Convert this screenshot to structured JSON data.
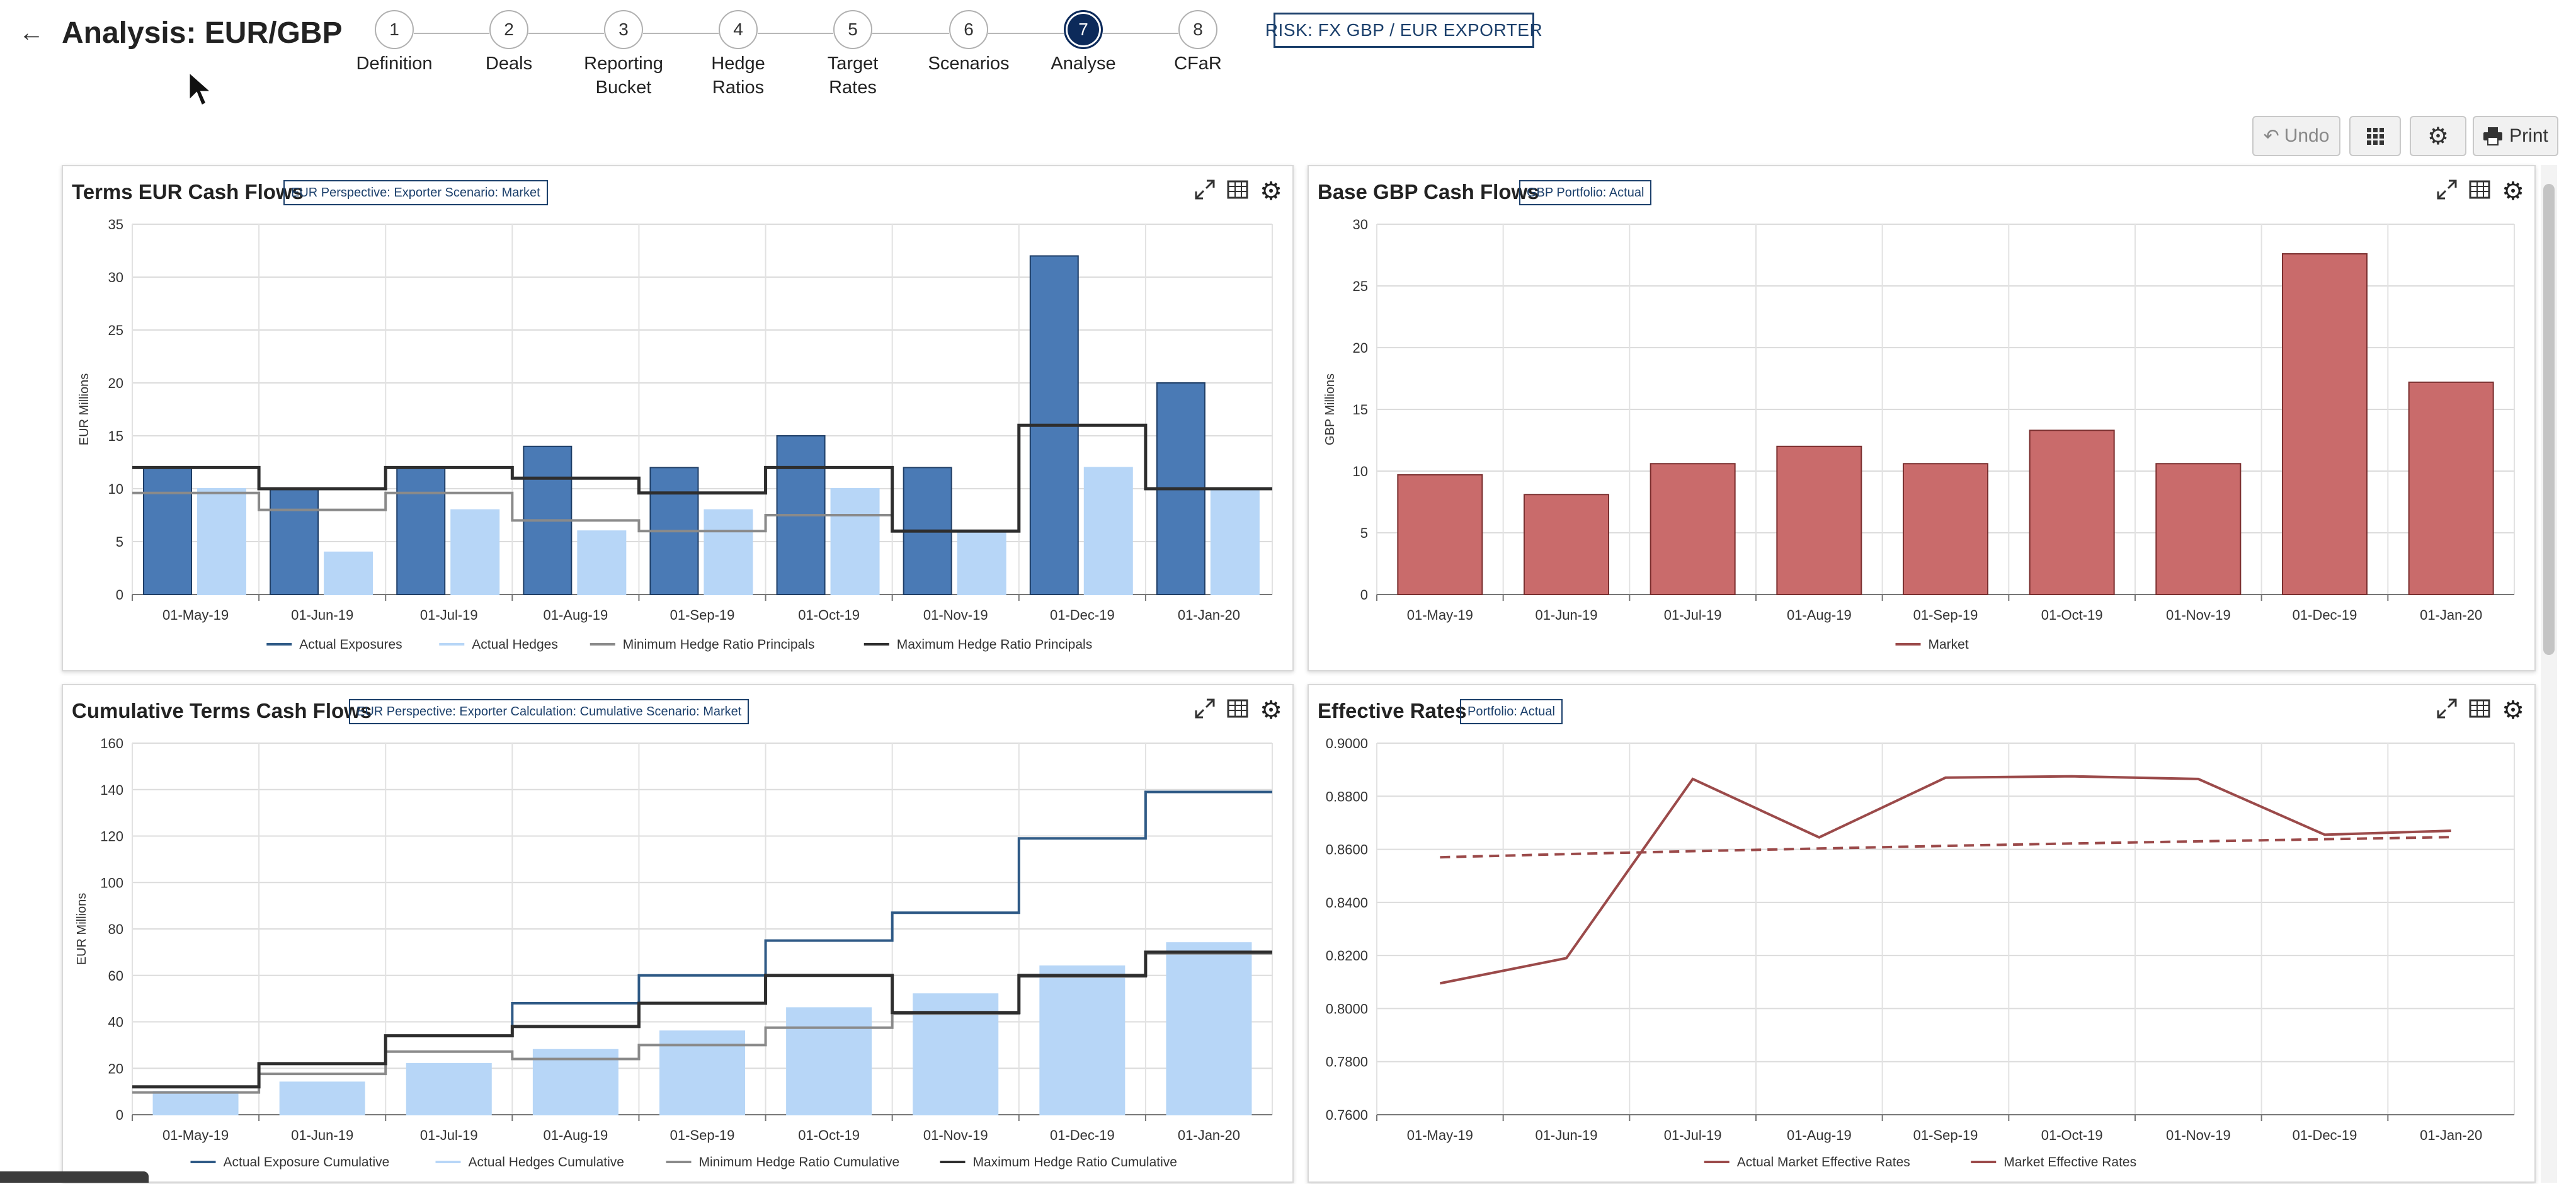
{
  "header": {
    "title": "Analysis: EUR/GBP",
    "risk": "RISK: FX GBP / EUR EXPORTER"
  },
  "steps": [
    {
      "num": "1",
      "label": "Definition"
    },
    {
      "num": "2",
      "label": "Deals"
    },
    {
      "num": "3",
      "label": "Reporting\nBucket"
    },
    {
      "num": "4",
      "label": "Hedge\nRatios"
    },
    {
      "num": "5",
      "label": "Target\nRates"
    },
    {
      "num": "6",
      "label": "Scenarios"
    },
    {
      "num": "7",
      "label": "Analyse"
    },
    {
      "num": "8",
      "label": "CFaR"
    }
  ],
  "active_step": 7,
  "toolbar": {
    "undo": "Undo",
    "print": "Print"
  },
  "colors": {
    "dark_blue": "#4a7ab5",
    "light_blue": "#b7d6f7",
    "red": "#c96b6b",
    "min_line": "#8a8a8a",
    "max_line": "#2e2e2e",
    "exposure_line": "#2f5a86",
    "rate_line": "#9b4a4a"
  },
  "panels": {
    "terms": {
      "title": "Terms EUR Cash Flows",
      "tag": "EUR Perspective: Exporter Scenario: Market"
    },
    "base": {
      "title": "Base GBP Cash Flows",
      "tag": "GBP Portfolio: Actual"
    },
    "cumulative": {
      "title": "Cumulative Terms Cash Flows",
      "tag": "EUR Perspective: Exporter Calculation: Cumulative Scenario: Market"
    },
    "rates": {
      "title": "Effective Rates",
      "tag": "Portfolio: Actual"
    }
  },
  "chart_data": [
    {
      "id": "terms",
      "type": "bar",
      "categories": [
        "01-May-19",
        "01-Jun-19",
        "01-Jul-19",
        "01-Aug-19",
        "01-Sep-19",
        "01-Oct-19",
        "01-Nov-19",
        "01-Dec-19",
        "01-Jan-20"
      ],
      "ylabel": "EUR Millions",
      "ylim": [
        0,
        35
      ],
      "yticks": [
        "0",
        "5",
        "10",
        "15",
        "20",
        "25",
        "30",
        "35"
      ],
      "bar_series": [
        {
          "name": "Actual Exposures",
          "values": [
            12,
            10,
            12,
            14,
            12,
            15,
            12,
            32,
            20
          ]
        },
        {
          "name": "Actual Hedges",
          "values": [
            10,
            4,
            8,
            6,
            8,
            10,
            6,
            12,
            10
          ]
        }
      ],
      "step_series": [
        {
          "name": "Minimum Hedge Ratio Principals",
          "values": [
            9.6,
            8,
            9.6,
            7,
            6,
            7.5,
            6,
            16,
            10
          ]
        },
        {
          "name": "Maximum Hedge Ratio Principals",
          "values": [
            12,
            10,
            12,
            11,
            9.6,
            12,
            6,
            16,
            10
          ]
        }
      ],
      "grid": true,
      "legend": "bottom"
    },
    {
      "id": "base",
      "type": "bar",
      "categories": [
        "01-May-19",
        "01-Jun-19",
        "01-Jul-19",
        "01-Aug-19",
        "01-Sep-19",
        "01-Oct-19",
        "01-Nov-19",
        "01-Dec-19",
        "01-Jan-20"
      ],
      "ylabel": "GBP Millions",
      "ylim": [
        0,
        30
      ],
      "yticks": [
        "0",
        "5",
        "10",
        "15",
        "20",
        "25",
        "30"
      ],
      "bar_series": [
        {
          "name": "Market",
          "values": [
            9.7,
            8.1,
            10.6,
            12,
            10.6,
            13.3,
            10.6,
            27.6,
            17.2
          ]
        }
      ],
      "grid": true,
      "legend": "bottom"
    },
    {
      "id": "cumulative",
      "type": "bar",
      "categories": [
        "01-May-19",
        "01-Jun-19",
        "01-Jul-19",
        "01-Aug-19",
        "01-Sep-19",
        "01-Oct-19",
        "01-Nov-19",
        "01-Dec-19",
        "01-Jan-20"
      ],
      "ylabel": "EUR Millions",
      "ylim": [
        0,
        160
      ],
      "yticks": [
        "0",
        "20",
        "40",
        "60",
        "80",
        "100",
        "120",
        "140",
        "160"
      ],
      "bar_series": [
        {
          "name": "Actual Hedges Cumulative",
          "values": [
            10,
            14,
            22,
            28,
            36,
            46,
            52,
            64,
            74
          ]
        }
      ],
      "step_series": [
        {
          "name": "Actual Exposure Cumulative",
          "values": [
            12,
            22,
            34,
            48,
            60,
            75,
            87,
            119,
            139
          ]
        },
        {
          "name": "Minimum Hedge Ratio Cumulative",
          "values": [
            9.6,
            17.6,
            27.2,
            24,
            30,
            37.5,
            43.5,
            59.5,
            69.5
          ]
        },
        {
          "name": "Maximum Hedge Ratio Cumulative",
          "values": [
            12,
            22,
            34,
            38,
            48,
            60,
            44,
            60,
            70
          ]
        }
      ],
      "legend_order": [
        "Actual Exposure Cumulative",
        "Actual Hedges Cumulative",
        "Minimum Hedge Ratio Cumulative",
        "Maximum Hedge Ratio Cumulative"
      ],
      "grid": true,
      "legend": "bottom"
    },
    {
      "id": "rates",
      "type": "line",
      "categories": [
        "01-May-19",
        "01-Jun-19",
        "01-Jul-19",
        "01-Aug-19",
        "01-Sep-19",
        "01-Oct-19",
        "01-Nov-19",
        "01-Dec-19",
        "01-Jan-20"
      ],
      "ylim": [
        0.76,
        0.9
      ],
      "yticks": [
        "0.7600",
        "0.7800",
        "0.8000",
        "0.8200",
        "0.8400",
        "0.8600",
        "0.8800",
        "0.9000"
      ],
      "series": [
        {
          "name": "Actual Market Effective Rates",
          "dashed": false,
          "values": [
            0.8095,
            0.819,
            0.8865,
            0.8645,
            0.887,
            0.8875,
            0.8865,
            0.8655,
            0.867
          ]
        },
        {
          "name": "Market Effective Rates",
          "dashed": true,
          "values": [
            0.857,
            0.8582,
            0.8593,
            0.8603,
            0.8613,
            0.8622,
            0.863,
            0.8638,
            0.8646
          ]
        }
      ],
      "grid": true,
      "legend": "bottom"
    }
  ]
}
